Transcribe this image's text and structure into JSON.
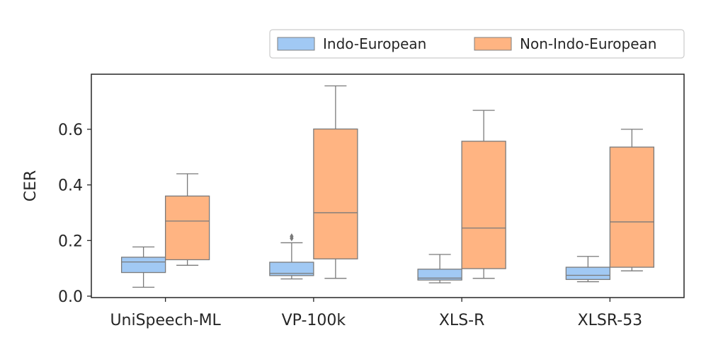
{
  "chart_data": {
    "type": "box",
    "title": "",
    "xlabel": "",
    "ylabel": "CER",
    "ylim": [
      0.0,
      0.78
    ],
    "yticks": [
      0.0,
      0.2,
      0.4,
      0.6
    ],
    "ytick_labels": [
      "0.0",
      "0.2",
      "0.4",
      "0.6"
    ],
    "grid": false,
    "legend_position": "top-right, above plot",
    "categories": [
      "UniSpeech-ML",
      "VP-100k",
      "XLS-R",
      "XLSR-53"
    ],
    "series": [
      {
        "name": "Indo-European",
        "color": "#a1c9f4",
        "boxes": [
          {
            "whislo": 0.032,
            "q1": 0.085,
            "med": 0.123,
            "q3": 0.14,
            "whishi": 0.177,
            "fliers": []
          },
          {
            "whislo": 0.062,
            "q1": 0.074,
            "med": 0.082,
            "q3": 0.122,
            "whishi": 0.192,
            "fliers": [
              0.208,
              0.215
            ]
          },
          {
            "whislo": 0.048,
            "q1": 0.058,
            "med": 0.065,
            "q3": 0.097,
            "whishi": 0.15,
            "fliers": []
          },
          {
            "whislo": 0.052,
            "q1": 0.06,
            "med": 0.075,
            "q3": 0.104,
            "whishi": 0.143,
            "fliers": []
          }
        ]
      },
      {
        "name": "Non-Indo-European",
        "color": "#ffb482",
        "boxes": [
          {
            "whislo": 0.111,
            "q1": 0.131,
            "med": 0.27,
            "q3": 0.36,
            "whishi": 0.44,
            "fliers": []
          },
          {
            "whislo": 0.064,
            "q1": 0.134,
            "med": 0.3,
            "q3": 0.601,
            "whishi": 0.756,
            "fliers": []
          },
          {
            "whislo": 0.064,
            "q1": 0.099,
            "med": 0.245,
            "q3": 0.557,
            "whishi": 0.668,
            "fliers": []
          },
          {
            "whislo": 0.091,
            "q1": 0.104,
            "med": 0.267,
            "q3": 0.536,
            "whishi": 0.6,
            "fliers": []
          }
        ]
      }
    ]
  }
}
